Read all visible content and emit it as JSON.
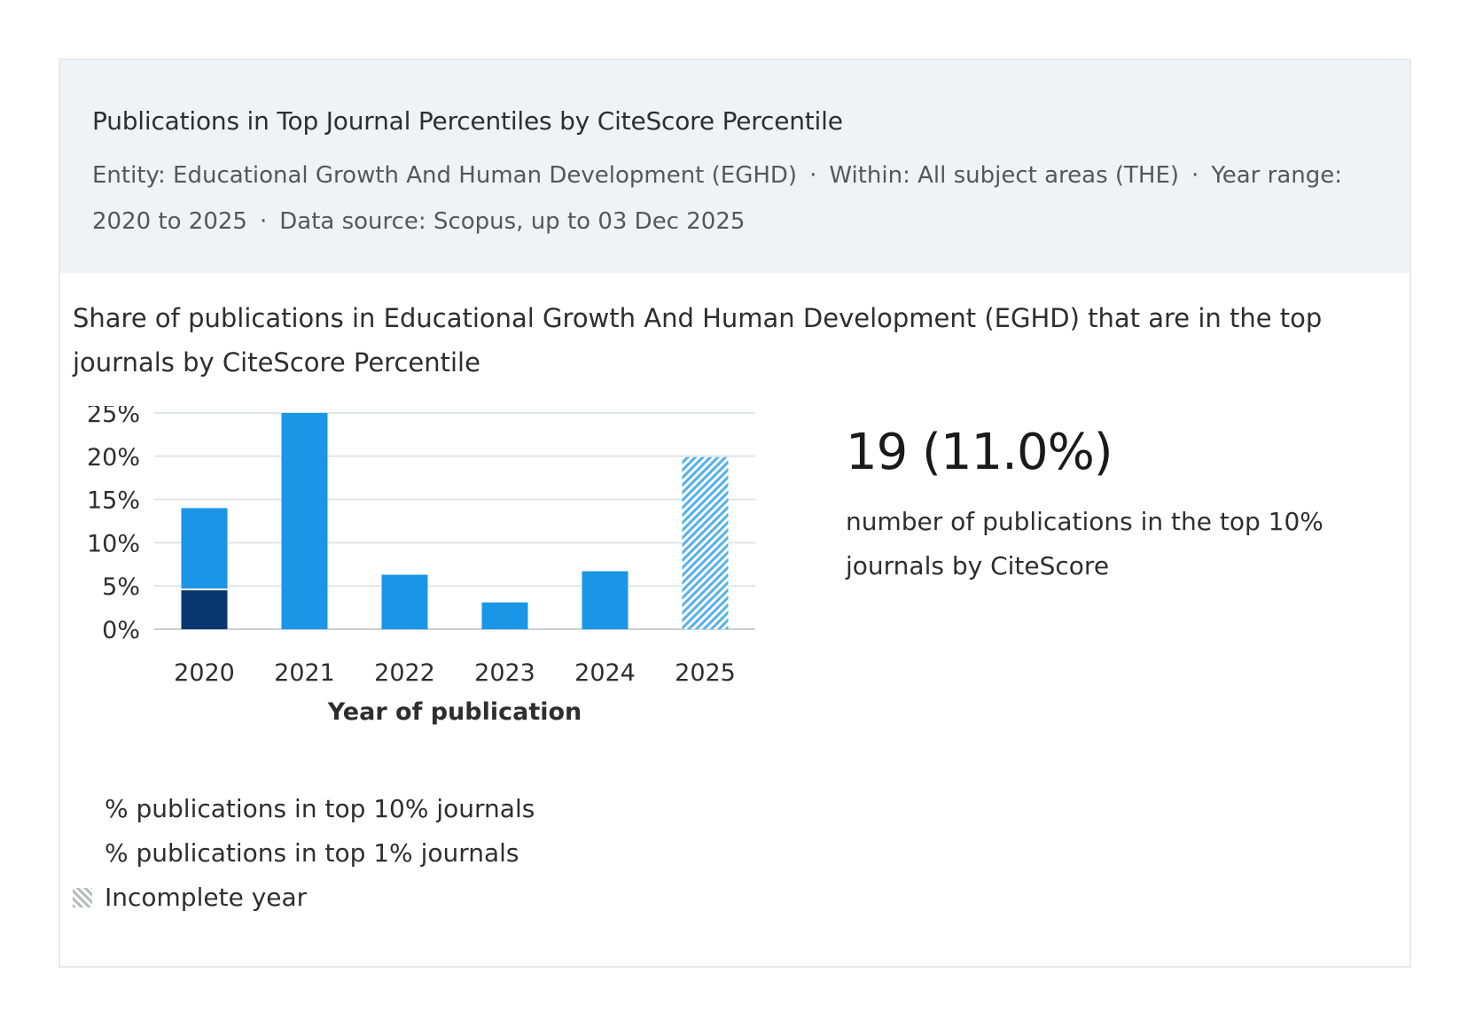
{
  "header": {
    "title": "Publications in Top Journal Percentiles by CiteScore Percentile",
    "meta_items": [
      "Entity: Educational Growth And Human Development (EGHD)",
      "Within: All subject areas (THE)",
      "Year range: 2020 to 2025",
      "Data source: Scopus, up to 03 Dec 2025"
    ]
  },
  "subtitle": "Share of publications in Educational Growth And Human Development (EGHD) that are in the top journals by CiteScore Percentile",
  "stat": {
    "value": "19 (11.0%)",
    "description": "number of publications in the top 10% journals by CiteScore"
  },
  "legend": {
    "top10": "% publications in top 10% journals",
    "top1": "% publications in top 1% journals",
    "incomplete": "Incomplete year"
  },
  "colors": {
    "top10": "#1b96e6",
    "top1": "#0a3670",
    "grid": "#e3e6e9",
    "axis": "#c9ced3"
  },
  "chart_data": {
    "type": "bar",
    "title": "",
    "xlabel": "Year of publication",
    "ylabel": "",
    "categories": [
      "2020",
      "2021",
      "2022",
      "2023",
      "2024",
      "2025"
    ],
    "series": [
      {
        "name": "% publications in top 10% journals",
        "values": [
          14.0,
          25.0,
          6.3,
          3.1,
          6.7,
          19.9
        ]
      },
      {
        "name": "% publications in top 1% journals",
        "values": [
          4.6,
          0,
          0,
          0,
          0,
          0
        ]
      }
    ],
    "incomplete": [
      false,
      false,
      false,
      false,
      false,
      true
    ],
    "ylim": [
      0,
      25
    ],
    "yticks": [
      0,
      5,
      10,
      15,
      20,
      25
    ],
    "ytick_labels": [
      "0%",
      "5%",
      "10%",
      "15%",
      "20%",
      "25%"
    ],
    "grid": true,
    "legend_position": "bottom-left"
  }
}
